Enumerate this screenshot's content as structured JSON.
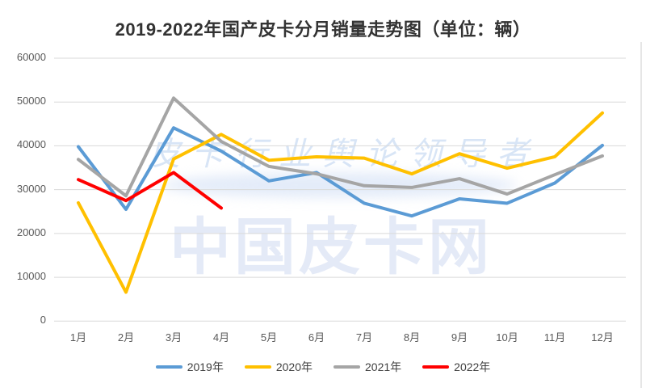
{
  "title": "2019-2022年国产皮卡分月销量走势图（单位：辆）",
  "watermark": {
    "tagline": "皮卡行业舆论领导者",
    "brand": "中国皮卡网"
  },
  "colors": {
    "series_2019": "#5B9BD5",
    "series_2020": "#FFC000",
    "series_2021": "#A5A5A5",
    "series_2022": "#FF0000",
    "gridline": "#D9D9D9",
    "axis_text": "#595959",
    "title_text": "#333333",
    "legend_text": "#404040",
    "watermark_brand_blue": "#E4EAF7",
    "watermark_tagline_blue": "#CFDFF4"
  },
  "chart_data": {
    "type": "line",
    "title": "2019-2022年国产皮卡分月销量走势图（单位：辆）",
    "unit": "辆",
    "categories": [
      "1月",
      "2月",
      "3月",
      "4月",
      "5月",
      "6月",
      "7月",
      "8月",
      "9月",
      "10月",
      "11月",
      "12月"
    ],
    "series": [
      {
        "name": "2019年",
        "color": "#5B9BD5",
        "values": [
          39800,
          25500,
          44100,
          38800,
          32000,
          33900,
          26900,
          24000,
          27900,
          26900,
          31500,
          40100
        ]
      },
      {
        "name": "2020年",
        "color": "#FFC000",
        "values": [
          27000,
          6600,
          37000,
          42600,
          36700,
          37500,
          37200,
          33600,
          38200,
          34900,
          37500,
          47500
        ]
      },
      {
        "name": "2021年",
        "color": "#A5A5A5",
        "values": [
          36900,
          28600,
          50900,
          41000,
          35300,
          33600,
          30900,
          30500,
          32500,
          29000,
          33400,
          37700
        ]
      },
      {
        "name": "2022年",
        "color": "#FF0000",
        "values": [
          32300,
          27500,
          33900,
          25800
        ]
      }
    ],
    "y_ticks": [
      0,
      10000,
      20000,
      30000,
      40000,
      50000,
      60000
    ],
    "ylim": [
      0,
      60000
    ],
    "grid": true,
    "legend_position": "bottom"
  }
}
